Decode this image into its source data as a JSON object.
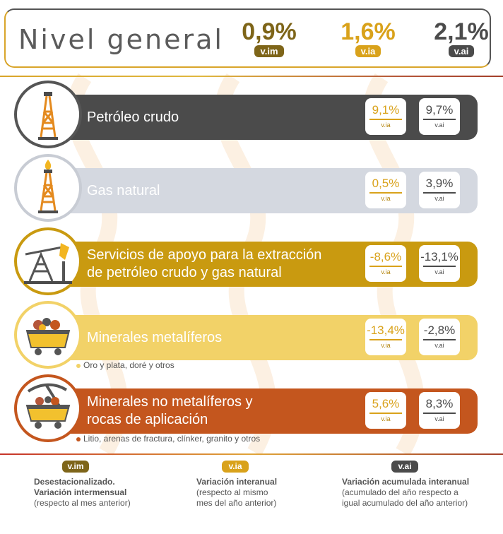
{
  "header": {
    "title": "Nivel general",
    "vim": {
      "value": "0,9%",
      "tag": "v.im"
    },
    "via": {
      "value": "1,6%",
      "tag": "v.ia"
    },
    "vai": {
      "value": "2,1%",
      "tag": "v.ai"
    }
  },
  "rows": [
    {
      "label1": "Petróleo crudo",
      "label2": "",
      "via": "9,1%",
      "vai": "9,7%",
      "via_tag": "v.ia",
      "vai_tag": "v.ai",
      "bar_color": "#4b4b4b",
      "icon": "oil-derrick-icon"
    },
    {
      "label1": "Gas natural",
      "label2": "",
      "via": "0,5%",
      "vai": "3,9%",
      "via_tag": "v.ia",
      "vai_tag": "v.ai",
      "bar_color": "#d4d8e0",
      "icon": "gas-derrick-icon"
    },
    {
      "label1": "Servicios de apoyo para la extracción",
      "label2": "de petróleo crudo y gas natural",
      "via": "-8,6%",
      "vai": "-13,1%",
      "via_tag": "v.ia",
      "vai_tag": "v.ai",
      "bar_color": "#c99a10",
      "icon": "pumpjack-icon"
    },
    {
      "label1": "Minerales metalíferos",
      "label2": "",
      "via": "-13,4%",
      "vai": "-2,8%",
      "via_tag": "v.ia",
      "vai_tag": "v.ai",
      "bar_color": "#f2d268",
      "icon": "mine-cart-icon",
      "note": "Oro y plata, doré y otros",
      "note_color": "#f2d268"
    },
    {
      "label1": "Minerales no metalíferos y",
      "label2": "rocas de aplicación",
      "via": "5,6%",
      "vai": "8,3%",
      "via_tag": "v.ia",
      "vai_tag": "v.ai",
      "bar_color": "#c4561e",
      "icon": "pickaxe-cart-icon",
      "note": "Litio, arenas de fractura, clínker, granito y otros",
      "note_color": "#c4561e"
    }
  ],
  "legend": {
    "vim": {
      "tag": "v.im",
      "title1": "Desestacionalizado.",
      "title2": "Variación intermensual",
      "desc1": "(respecto al mes anterior)",
      "desc2": ""
    },
    "via": {
      "tag": "v.ia",
      "title1": "Variación interanual",
      "title2": "",
      "desc1": "(respecto al mismo",
      "desc2": "mes del año anterior)"
    },
    "vai": {
      "tag": "v.ai",
      "title1": "Variación acumulada interanual",
      "title2": "",
      "desc1": "(acumulado del año respecto a",
      "desc2": "igual acumulado del año anterior)"
    }
  },
  "colors": {
    "vim": "#7e6519",
    "via": "#d9a21b",
    "vai": "#4b4b4b"
  }
}
